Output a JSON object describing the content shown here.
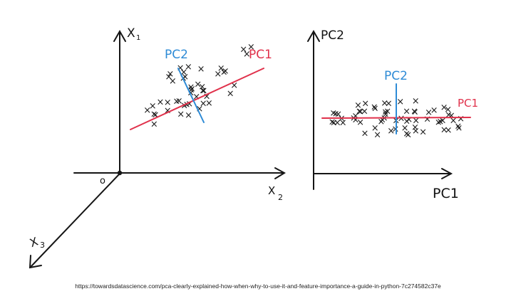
{
  "left_plot": {
    "axis_y_label": "X",
    "axis_y_sub": "1",
    "axis_x_label": "X",
    "axis_x_sub": "2",
    "axis_z_label": "X",
    "axis_z_sub": "3",
    "origin_label": "o",
    "pc1_label": "PC1",
    "pc2_label": "PC2"
  },
  "right_plot": {
    "axis_y_label": "PC2",
    "axis_x_label": "PC1",
    "pc1_label": "PC1",
    "pc2_label": "PC2"
  },
  "colors": {
    "pc1": "#e0314b",
    "pc2": "#2e8bd6",
    "ink": "#151515"
  },
  "source_url": "https://towardsdatascience.com/pca-clearly-explained-how-when-why-to-use-it-and-feature-importance-a-guide-in-python-7c274582c37e"
}
